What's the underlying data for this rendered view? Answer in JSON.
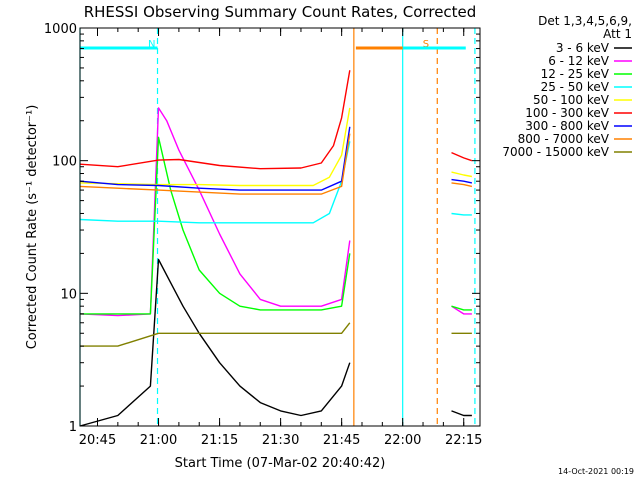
{
  "chart_data": {
    "type": "line",
    "title": "RHESSI Observing Summary Count Rates, Corrected",
    "xlabel": "Start Time (07-Mar-02 20:40:42)",
    "ylabel": "Corrected Count Rate (s⁻¹ detector⁻¹)",
    "y_scale": "log",
    "ylim": [
      1,
      1000
    ],
    "xlim": [
      "20:40:42",
      "22:19:00"
    ],
    "y_ticks": [
      {
        "value": 1,
        "label": "1"
      },
      {
        "value": 10,
        "label": "10"
      },
      {
        "value": 100,
        "label": "100"
      },
      {
        "value": 1000,
        "label": "1000"
      }
    ],
    "x_ticks": [
      {
        "value": "20:45",
        "label": "20:45"
      },
      {
        "value": "21:00",
        "label": "21:00"
      },
      {
        "value": "21:15",
        "label": "21:15"
      },
      {
        "value": "21:30",
        "label": "21:30"
      },
      {
        "value": "21:45",
        "label": "21:45"
      },
      {
        "value": "22:00",
        "label": "22:00"
      },
      {
        "value": "22:15",
        "label": "22:15"
      }
    ],
    "legend_header": [
      "Det 1,3,4,5,6,9,",
      "Att 1"
    ],
    "legend_placement": "right",
    "footer": "14-Oct-2021 00:19",
    "flags": [
      {
        "label": "N",
        "color": "#00ffff",
        "start": "20:40:42",
        "end": "20:59:45"
      },
      {
        "label": "S",
        "color": "#ff8000",
        "start": "21:48:30",
        "end": "22:07:00"
      },
      {
        "label": "",
        "color": "#00ffff",
        "start": "22:00:00",
        "end": "22:15:30"
      }
    ],
    "vertical_lines": [
      {
        "time": "20:40:42",
        "color": "#00ffff",
        "style": "solid"
      },
      {
        "time": "20:59:45",
        "color": "#00ffff",
        "style": "dashed"
      },
      {
        "time": "21:48:00",
        "color": "#ff8000",
        "style": "solid"
      },
      {
        "time": "22:00:00",
        "color": "#00ffff",
        "style": "solid"
      },
      {
        "time": "22:08:30",
        "color": "#ff8000",
        "style": "dashed"
      },
      {
        "time": "22:17:45",
        "color": "#00ffff",
        "style": "dashed"
      }
    ],
    "series": [
      {
        "name": "3 - 6 keV",
        "color": "#000000",
        "x": [
          "20:40:42",
          "20:50",
          "20:58",
          "21:00",
          "21:03",
          "21:06",
          "21:10",
          "21:15",
          "21:20",
          "21:25",
          "21:30",
          "21:35",
          "21:40",
          "21:45",
          "21:47",
          "22:10",
          "22:12",
          "22:15",
          "22:17"
        ],
        "values": [
          1,
          1.2,
          2,
          18,
          12,
          8,
          5,
          3,
          2,
          1.5,
          1.3,
          1.2,
          1.3,
          2,
          3,
          null,
          1.3,
          1.2,
          1.2
        ]
      },
      {
        "name": "6 - 12 keV",
        "color": "#ff00ff",
        "x": [
          "20:40:42",
          "20:50",
          "20:58",
          "21:00",
          "21:02",
          "21:05",
          "21:10",
          "21:15",
          "21:20",
          "21:25",
          "21:30",
          "21:35",
          "21:40",
          "21:45",
          "21:47",
          "22:10",
          "22:12",
          "22:15",
          "22:17"
        ],
        "values": [
          7,
          6.8,
          7,
          250,
          200,
          120,
          60,
          28,
          14,
          9,
          8,
          8,
          8,
          9,
          25,
          null,
          8,
          7,
          7
        ]
      },
      {
        "name": "12 - 25 keV",
        "color": "#00ff00",
        "x": [
          "20:40:42",
          "20:50",
          "20:58",
          "21:00",
          "21:03",
          "21:06",
          "21:10",
          "21:15",
          "21:20",
          "21:25",
          "21:30",
          "21:35",
          "21:40",
          "21:45",
          "21:47",
          "22:10",
          "22:12",
          "22:15",
          "22:17"
        ],
        "values": [
          7,
          7,
          7,
          150,
          60,
          30,
          15,
          10,
          8,
          7.5,
          7.5,
          7.5,
          7.5,
          8,
          20,
          null,
          8,
          7.5,
          7.5
        ]
      },
      {
        "name": "25 - 50 keV",
        "color": "#00ffff",
        "x": [
          "20:40:42",
          "20:50",
          "21:00",
          "21:10",
          "21:20",
          "21:30",
          "21:38",
          "21:42",
          "21:45",
          "21:47",
          "22:10",
          "22:12",
          "22:15",
          "22:17"
        ],
        "values": [
          36,
          35,
          35,
          34,
          34,
          34,
          34,
          40,
          70,
          140,
          null,
          40,
          39,
          39
        ]
      },
      {
        "name": "50 - 100 keV",
        "color": "#ffff00",
        "x": [
          "20:40:42",
          "20:50",
          "21:00",
          "21:10",
          "21:20",
          "21:30",
          "21:38",
          "21:42",
          "21:45",
          "21:47",
          "22:10",
          "22:12",
          "22:15",
          "22:17"
        ],
        "values": [
          68,
          67,
          66,
          66,
          65,
          65,
          65,
          75,
          110,
          250,
          null,
          82,
          78,
          76
        ]
      },
      {
        "name": "100 - 300 keV",
        "color": "#ff0000",
        "x": [
          "20:40:42",
          "20:50",
          "21:00",
          "21:05",
          "21:15",
          "21:25",
          "21:35",
          "21:40",
          "21:43",
          "21:45",
          "21:47",
          "22:10",
          "22:12",
          "22:15",
          "22:17"
        ],
        "values": [
          94,
          90,
          101,
          102,
          92,
          87,
          88,
          96,
          130,
          210,
          480,
          null,
          115,
          105,
          100
        ]
      },
      {
        "name": "300 - 800 keV",
        "color": "#0000ff",
        "x": [
          "20:40:42",
          "20:50",
          "21:00",
          "21:10",
          "21:20",
          "21:30",
          "21:40",
          "21:45",
          "21:47",
          "22:10",
          "22:12",
          "22:15",
          "22:17"
        ],
        "values": [
          70,
          66,
          65,
          62,
          60,
          60,
          60,
          70,
          180,
          null,
          72,
          70,
          68
        ]
      },
      {
        "name": "800 - 7000 keV",
        "color": "#ff8000",
        "x": [
          "20:40:42",
          "20:50",
          "21:00",
          "21:10",
          "21:20",
          "21:30",
          "21:40",
          "21:45",
          "21:47",
          "22:10",
          "22:12",
          "22:15",
          "22:17"
        ],
        "values": [
          64,
          62,
          60,
          58,
          56,
          56,
          56,
          64,
          160,
          null,
          68,
          66,
          64
        ]
      },
      {
        "name": "7000 - 15000 keV",
        "color": "#808000",
        "x": [
          "20:40:42",
          "20:50",
          "21:00",
          "21:10",
          "21:20",
          "21:30",
          "21:40",
          "21:45",
          "21:47",
          "22:10",
          "22:12",
          "22:15",
          "22:17"
        ],
        "values": [
          4,
          4,
          5,
          5,
          5,
          5,
          5,
          5,
          6,
          null,
          5,
          5,
          5
        ]
      }
    ]
  }
}
